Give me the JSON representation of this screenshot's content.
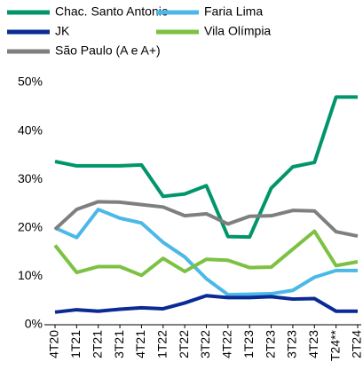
{
  "chart_data": {
    "type": "line",
    "categories": [
      "4T20",
      "1T21",
      "2T21",
      "3T21",
      "4T21",
      "1T22",
      "2T22",
      "3T22",
      "4T22",
      "1T23",
      "2T23",
      "3T23",
      "4T23",
      "T24**",
      "2T24"
    ],
    "series": [
      {
        "name": "Chac. Santo Antonio",
        "color": "#00956a",
        "values": [
          33.7,
          32.8,
          32.8,
          32.8,
          33.0,
          26.5,
          27.0,
          28.7,
          18.2,
          18.1,
          28.2,
          32.6,
          33.5,
          47.0,
          47.0
        ]
      },
      {
        "name": "Faria Lima",
        "color": "#4bb8e8",
        "values": [
          20.0,
          18.0,
          23.8,
          22.0,
          21.0,
          17.0,
          14.0,
          9.5,
          6.2,
          6.3,
          6.4,
          7.1,
          9.8,
          11.2,
          11.2
        ]
      },
      {
        "name": "JK",
        "color": "#0a2a94",
        "values": [
          2.6,
          3.1,
          2.8,
          3.2,
          3.5,
          3.3,
          4.5,
          6.0,
          5.6,
          5.6,
          5.8,
          5.3,
          5.4,
          2.8,
          2.8
        ]
      },
      {
        "name": "Vila Olímpia",
        "color": "#7cc142",
        "values": [
          16.4,
          10.8,
          12.0,
          12.0,
          10.2,
          13.7,
          11.0,
          13.5,
          13.3,
          11.8,
          11.9,
          15.6,
          19.3,
          12.2,
          13.0
        ]
      },
      {
        "name": "São Paulo (A e A+)",
        "color": "#7f7f7f",
        "values": [
          19.7,
          23.8,
          25.4,
          25.3,
          24.8,
          24.3,
          22.5,
          22.9,
          20.8,
          22.4,
          22.5,
          23.6,
          23.5,
          19.2,
          18.3
        ]
      }
    ],
    "ylim": [
      0,
      50
    ],
    "yticks": [
      {
        "value": 0,
        "label": "0%"
      },
      {
        "value": 10,
        "label": "10%"
      },
      {
        "value": 20,
        "label": "20%"
      },
      {
        "value": 30,
        "label": "30%"
      },
      {
        "value": 40,
        "label": "40%"
      },
      {
        "value": 50,
        "label": "50%"
      }
    ]
  }
}
